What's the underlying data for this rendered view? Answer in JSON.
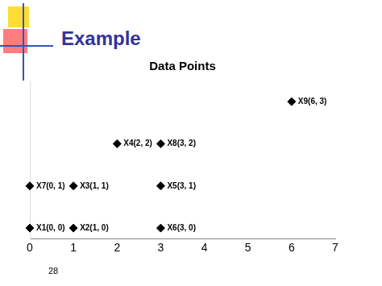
{
  "slide": {
    "heading": "Example",
    "page_number": 28
  },
  "chart_data": {
    "type": "scatter",
    "title": "Data Points",
    "x": [
      0,
      1,
      1,
      2,
      3,
      3,
      0,
      3,
      6
    ],
    "values": [
      0,
      0,
      1,
      2,
      1,
      0,
      1,
      2,
      3
    ],
    "annotations": [
      "X1(0, 0)",
      "X2(1, 0)",
      "X3(1, 1)",
      "X4(2, 2)",
      "X5(3, 1)",
      "X6(3, 0)",
      "X7(0, 1)",
      "X8(3, 2)",
      "X9(6, 3)"
    ],
    "color": "#000000",
    "marker": "diamond",
    "xlim": [
      0,
      7
    ],
    "xticks": [
      0,
      1,
      2,
      3,
      4,
      5,
      6,
      7
    ],
    "ylim": [
      -0.25,
      3.5
    ],
    "yticks": [],
    "tick_labels": "x",
    "grid": false
  }
}
